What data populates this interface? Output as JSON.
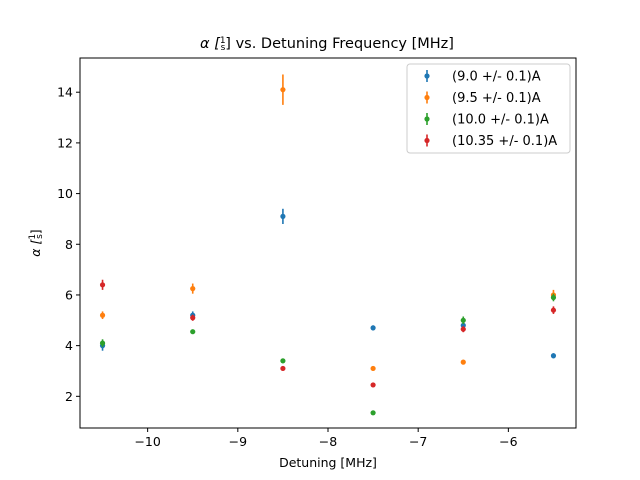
{
  "chart_data": {
    "type": "scatter",
    "title": "α [1/s] vs. Detuning Frequency [MHz]",
    "title_parts": {
      "prefix": "α [",
      "frac_num": "1",
      "frac_den": "s",
      "suffix": "] vs. Detuning Frequency [MHz]"
    },
    "xlabel": "Detuning [MHz]",
    "ylabel": "α [1/s]",
    "ylabel_parts": {
      "prefix": "α [",
      "frac_num": "1",
      "frac_den": "s",
      "suffix": "]"
    },
    "xlim": [
      -10.75,
      -5.25
    ],
    "ylim": [
      0.75,
      15.35
    ],
    "xticks": [
      -10,
      -9,
      -8,
      -7,
      -6
    ],
    "xtick_labels": [
      "−10",
      "−9",
      "−8",
      "−7",
      "−6"
    ],
    "yticks": [
      2,
      4,
      6,
      8,
      10,
      12,
      14
    ],
    "ytick_labels": [
      "2",
      "4",
      "6",
      "8",
      "10",
      "12",
      "14"
    ],
    "grid": false,
    "legend_position": "top-right",
    "series": [
      {
        "name": "(9.0 +/- 0.1)A",
        "color": "#1f77b4",
        "points": [
          {
            "x": -10.5,
            "y": 4.0,
            "err": 0.2
          },
          {
            "x": -9.5,
            "y": 5.2,
            "err": 0.15
          },
          {
            "x": -8.5,
            "y": 9.1,
            "err": 0.3
          },
          {
            "x": -7.5,
            "y": 4.7,
            "err": 0.1
          },
          {
            "x": -6.5,
            "y": 4.8,
            "err": 0.1
          },
          {
            "x": -5.5,
            "y": 3.6,
            "err": 0.1
          }
        ]
      },
      {
        "name": "(9.5 +/- 0.1)A",
        "color": "#ff7f0e",
        "points": [
          {
            "x": -10.5,
            "y": 5.2,
            "err": 0.15
          },
          {
            "x": -9.5,
            "y": 6.25,
            "err": 0.2
          },
          {
            "x": -8.5,
            "y": 14.1,
            "err": 0.6
          },
          {
            "x": -7.5,
            "y": 3.1,
            "err": 0.05
          },
          {
            "x": -6.5,
            "y": 3.35,
            "err": 0.08
          },
          {
            "x": -5.5,
            "y": 6.0,
            "err": 0.2
          }
        ]
      },
      {
        "name": "(10.0 +/- 0.1)A",
        "color": "#2ca02c",
        "points": [
          {
            "x": -10.5,
            "y": 4.1,
            "err": 0.15
          },
          {
            "x": -9.5,
            "y": 4.55,
            "err": 0.08
          },
          {
            "x": -8.5,
            "y": 3.4,
            "err": 0.05
          },
          {
            "x": -7.5,
            "y": 1.35,
            "err": 0.03
          },
          {
            "x": -6.5,
            "y": 5.0,
            "err": 0.15
          },
          {
            "x": -5.5,
            "y": 5.9,
            "err": 0.15
          }
        ]
      },
      {
        "name": "(10.35 +/- 0.1)A",
        "color": "#d62728",
        "points": [
          {
            "x": -10.5,
            "y": 6.4,
            "err": 0.2
          },
          {
            "x": -9.5,
            "y": 5.1,
            "err": 0.12
          },
          {
            "x": -8.5,
            "y": 3.1,
            "err": 0.05
          },
          {
            "x": -7.5,
            "y": 2.45,
            "err": 0.05
          },
          {
            "x": -6.5,
            "y": 4.65,
            "err": 0.12
          },
          {
            "x": -5.5,
            "y": 5.4,
            "err": 0.15
          }
        ]
      }
    ]
  }
}
